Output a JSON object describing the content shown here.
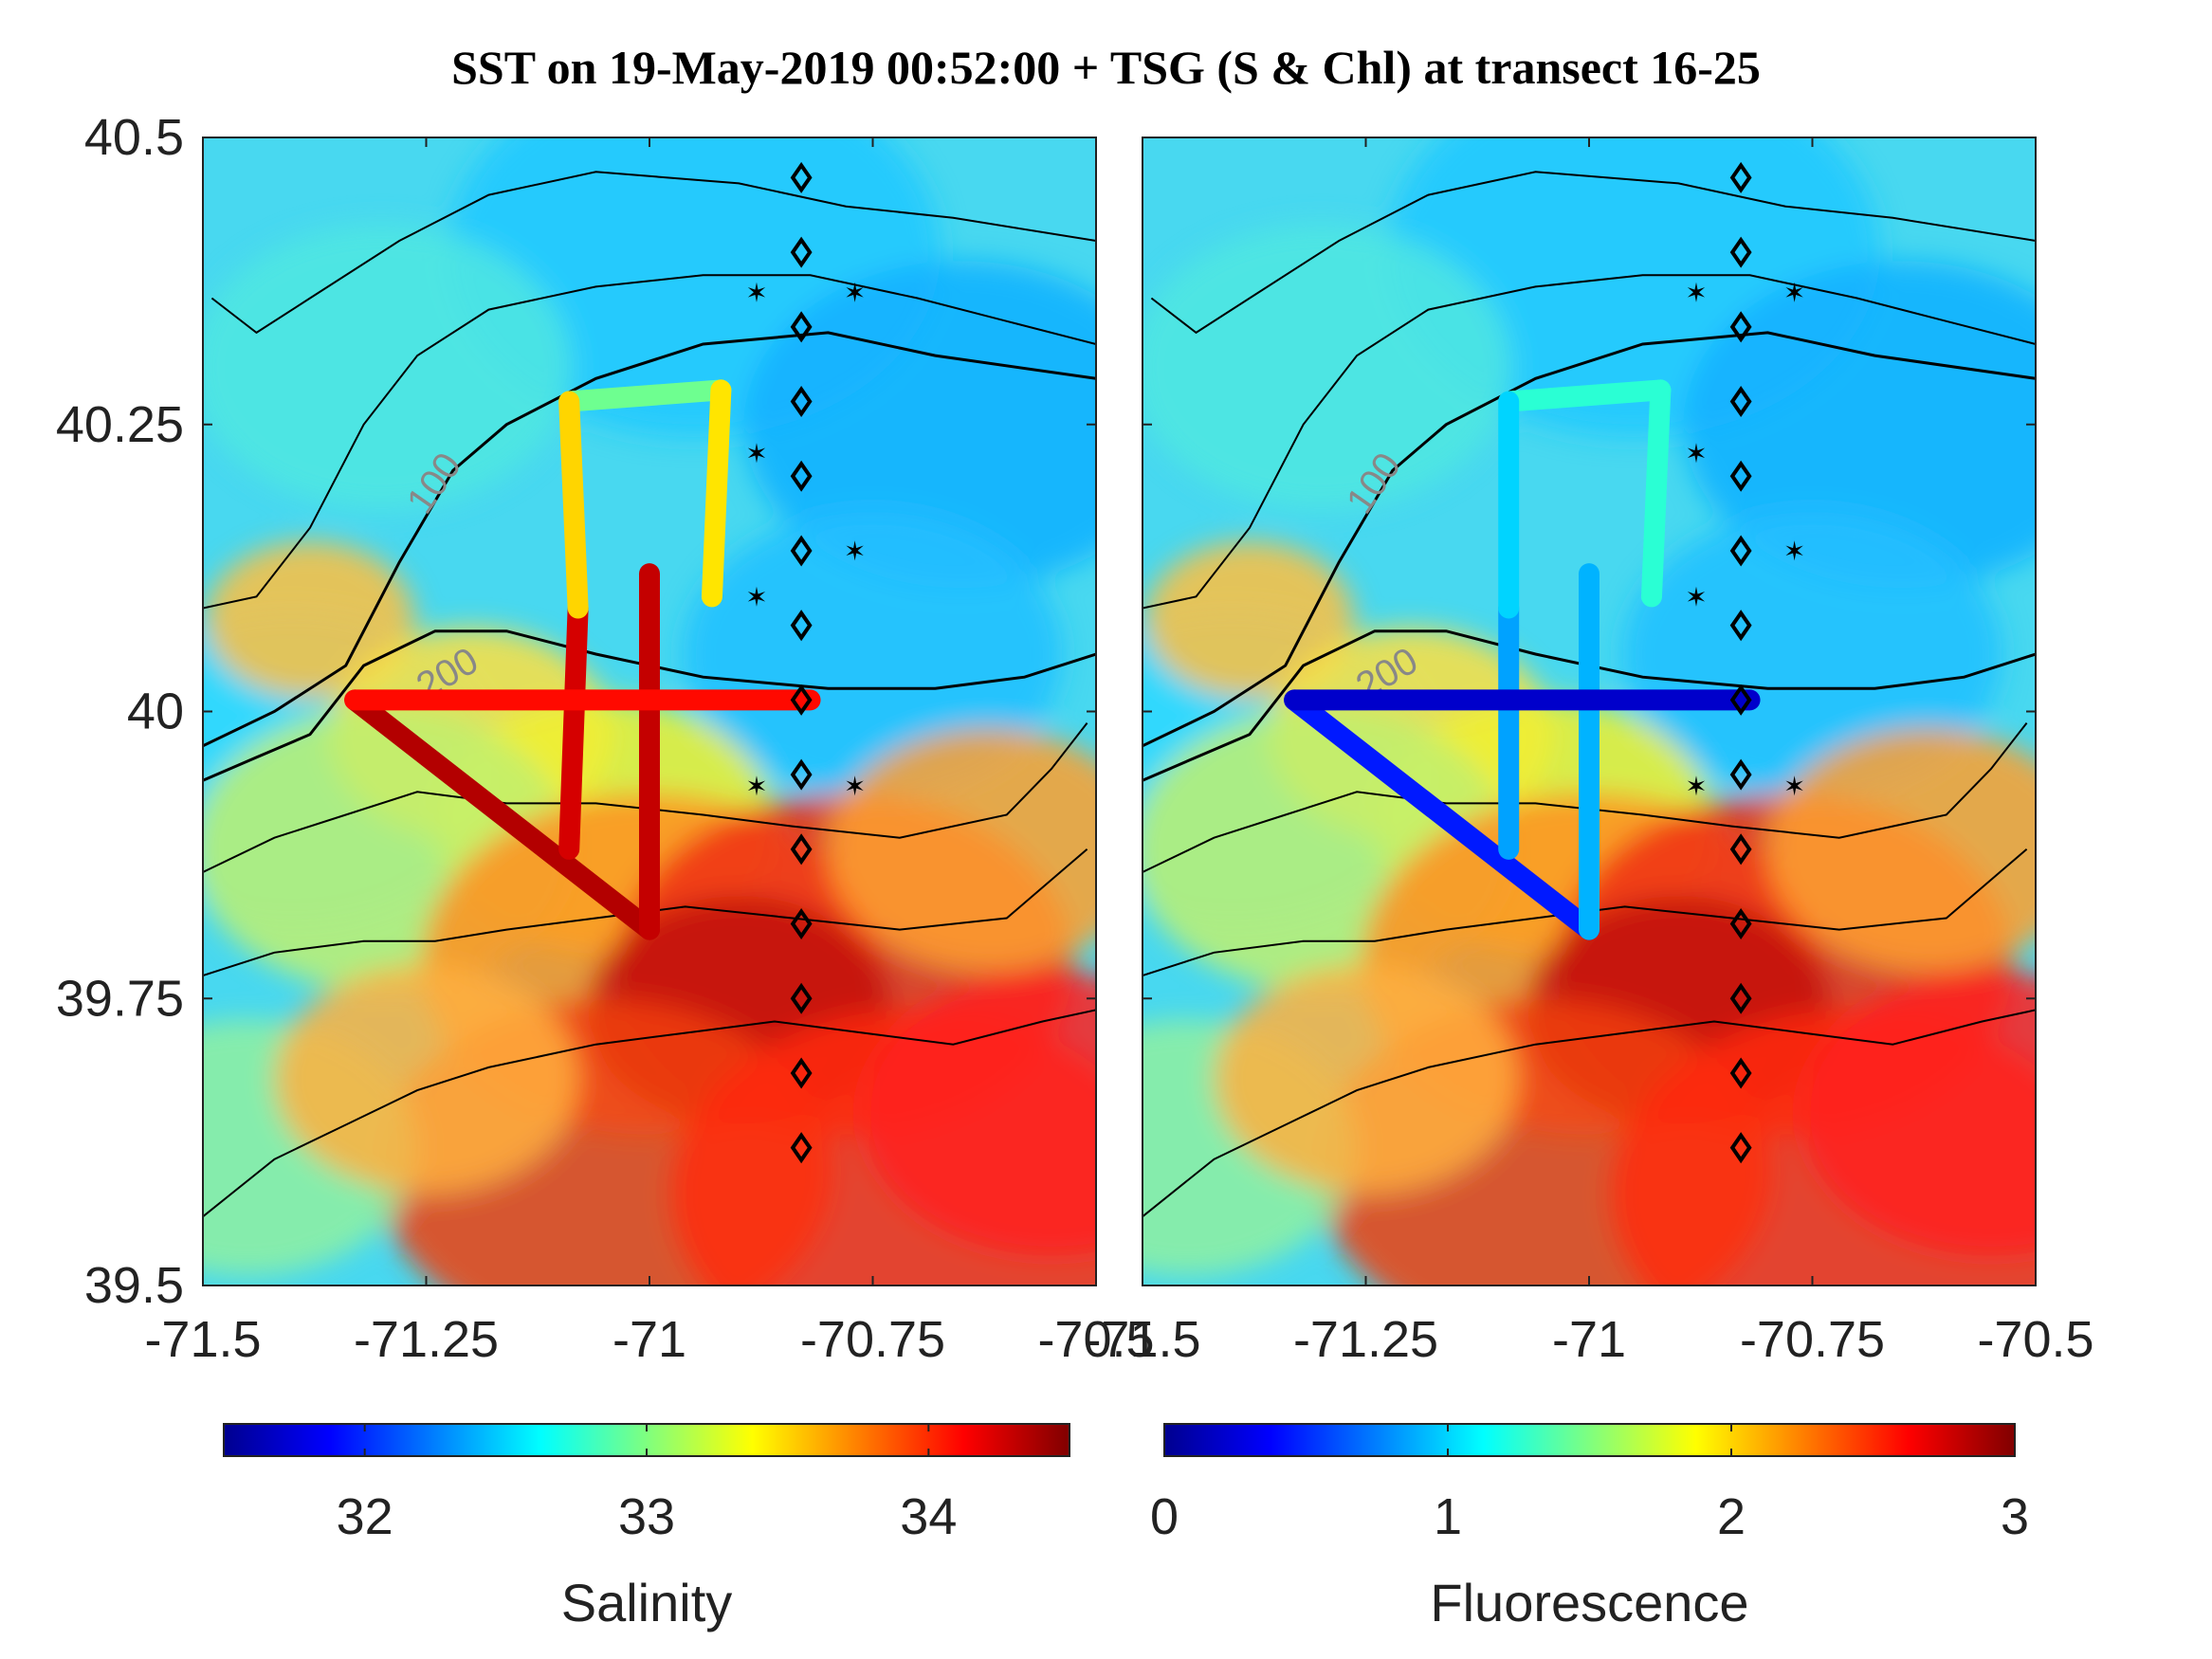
{
  "title": "SST on 19-May-2019 00:52:00 + TSG (S & Chl) at transect 16-25",
  "chart_data": [
    {
      "type": "heatmap",
      "background": "SST",
      "xlim": [
        -71.5,
        -70.5
      ],
      "ylim": [
        39.5,
        40.5
      ],
      "xticks": [
        "-71.5",
        "-71.25",
        "-71",
        "-70.75",
        "-70.5"
      ],
      "yticks": [
        "39.5",
        "39.75",
        "40",
        "40.25",
        "40.5"
      ],
      "colorbar": {
        "label": "Salinity",
        "range": [
          31.5,
          34.5
        ],
        "ticks": [
          "32",
          "33",
          "34"
        ]
      },
      "contour_labels": [
        "100",
        "200"
      ],
      "track": [
        {
          "x": -71.33,
          "y": 40.01,
          "v": 34.3
        },
        {
          "x": -71.2,
          "y": 39.94,
          "v": 34.2
        },
        {
          "x": -71.1,
          "y": 39.88,
          "v": 34.3
        },
        {
          "x": -71.0,
          "y": 39.81,
          "v": 34.4
        },
        {
          "x": -71.0,
          "y": 40.12,
          "v": 34.2
        },
        {
          "x": -71.08,
          "y": 40.09,
          "v": 34.2
        },
        {
          "x": -71.09,
          "y": 39.88,
          "v": 34.3
        },
        {
          "x": -70.9,
          "y": 40.01,
          "v": 34.2
        },
        {
          "x": -70.82,
          "y": 40.01,
          "v": 33.9
        },
        {
          "x": -71.09,
          "y": 40.27,
          "v": 32.8
        },
        {
          "x": -70.92,
          "y": 40.28,
          "v": 33.1
        },
        {
          "x": -70.93,
          "y": 40.1,
          "v": 33.8
        }
      ]
    },
    {
      "type": "heatmap",
      "background": "SST",
      "xlim": [
        -71.5,
        -70.5
      ],
      "ylim": [
        39.5,
        40.5
      ],
      "xticks": [
        "-71.5",
        "-71.25",
        "-71",
        "-70.75",
        "-70.5"
      ],
      "yticks": [],
      "colorbar": {
        "label": "Fluorescence",
        "range": [
          0,
          3
        ],
        "ticks": [
          "0",
          "1",
          "2",
          "3"
        ]
      },
      "contour_labels": [
        "100",
        "200"
      ],
      "track": [
        {
          "x": -71.33,
          "y": 40.01,
          "v": 0.2
        },
        {
          "x": -71.2,
          "y": 39.94,
          "v": 0.5
        },
        {
          "x": -71.1,
          "y": 39.88,
          "v": 0.6
        },
        {
          "x": -71.0,
          "y": 39.81,
          "v": 0.7
        },
        {
          "x": -71.0,
          "y": 40.12,
          "v": 1.1
        },
        {
          "x": -71.09,
          "y": 40.09,
          "v": 0.8
        },
        {
          "x": -71.09,
          "y": 39.88,
          "v": 0.9
        },
        {
          "x": -70.82,
          "y": 40.01,
          "v": 0.2
        },
        {
          "x": -71.09,
          "y": 40.27,
          "v": 1.2
        },
        {
          "x": -70.92,
          "y": 40.28,
          "v": 1.3
        },
        {
          "x": -70.93,
          "y": 40.1,
          "v": 1.2
        }
      ]
    }
  ]
}
